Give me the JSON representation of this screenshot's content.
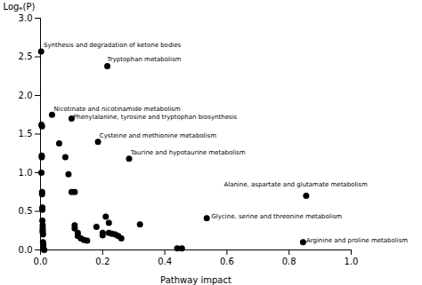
{
  "chart_data": {
    "type": "scatter",
    "xlabel": "Pathway impact",
    "ylabel": "Logₑ(P)",
    "color": "#000000",
    "xlim": [
      0,
      1
    ],
    "ylim": [
      0,
      3
    ],
    "xticks": [
      {
        "value": 0,
        "label": "0.0"
      },
      0.2,
      0.4,
      0.6,
      0.8,
      {
        "value": 1.0,
        "label": "1.0"
      }
    ],
    "yticks": [
      {
        "value": 0,
        "label": "0.0"
      },
      0.5,
      {
        "value": 1.0,
        "label": "1.0"
      },
      1.5,
      {
        "value": 2.0,
        "label": "2.0"
      },
      2.5,
      {
        "value": 3.0,
        "label": "3.0"
      }
    ],
    "x": [
      0.002,
      0.215,
      0.037,
      0.1,
      0.185,
      0.285,
      0.855,
      0.535,
      0.845,
      0.003,
      0.005,
      0.004,
      0.004,
      0.003,
      0.005,
      0.005,
      0.006,
      0.006,
      0.006,
      0.007,
      0.007,
      0.007,
      0.007,
      0.008,
      0.008,
      0.009,
      0.009,
      0.01,
      0.012,
      0.06,
      0.08,
      0.09,
      0.1,
      0.11,
      0.11,
      0.11,
      0.12,
      0.12,
      0.13,
      0.14,
      0.15,
      0.18,
      0.2,
      0.2,
      0.21,
      0.22,
      0.22,
      0.23,
      0.24,
      0.25,
      0.26,
      0.32,
      0.44,
      0.455
    ],
    "values": [
      2.57,
      2.38,
      1.75,
      1.7,
      1.4,
      1.18,
      0.7,
      0.41,
      0.1,
      1.62,
      1.6,
      1.2,
      1.22,
      1.0,
      0.75,
      0.72,
      0.55,
      0.52,
      0.38,
      0.32,
      0.28,
      0.25,
      0.23,
      0.2,
      0.1,
      0.07,
      0.03,
      0.01,
      0.0,
      1.38,
      1.2,
      0.98,
      0.75,
      0.75,
      0.32,
      0.28,
      0.22,
      0.18,
      0.15,
      0.13,
      0.12,
      0.3,
      0.22,
      0.19,
      0.43,
      0.35,
      0.22,
      0.21,
      0.2,
      0.18,
      0.15,
      0.33,
      0.02,
      0.02
    ],
    "annotations": [
      {
        "text": "Synthesis and degradation of ketone bodies",
        "x": 0.01,
        "y": 2.63
      },
      {
        "text": "Tryptophan metabolism",
        "x": 0.215,
        "y": 2.44
      },
      {
        "text": "Nicotinate and nicotinamide metabolism",
        "x": 0.043,
        "y": 1.8
      },
      {
        "text": "Phenylalanine, tyrosine and tryptophan biosynthesis",
        "x": 0.105,
        "y": 1.7
      },
      {
        "text": "Cysteine and methionine metabolism",
        "x": 0.19,
        "y": 1.45
      },
      {
        "text": "Taurine and hypotaurine metabolism",
        "x": 0.29,
        "y": 1.23
      },
      {
        "text": "Alanine, aspartate and glutamate metabolism",
        "x": 0.59,
        "y": 0.82
      },
      {
        "text": "Glycine, serine and threonine metabolism",
        "x": 0.55,
        "y": 0.41
      },
      {
        "text": "Arginine and proline metabolism",
        "x": 0.855,
        "y": 0.1
      }
    ]
  }
}
